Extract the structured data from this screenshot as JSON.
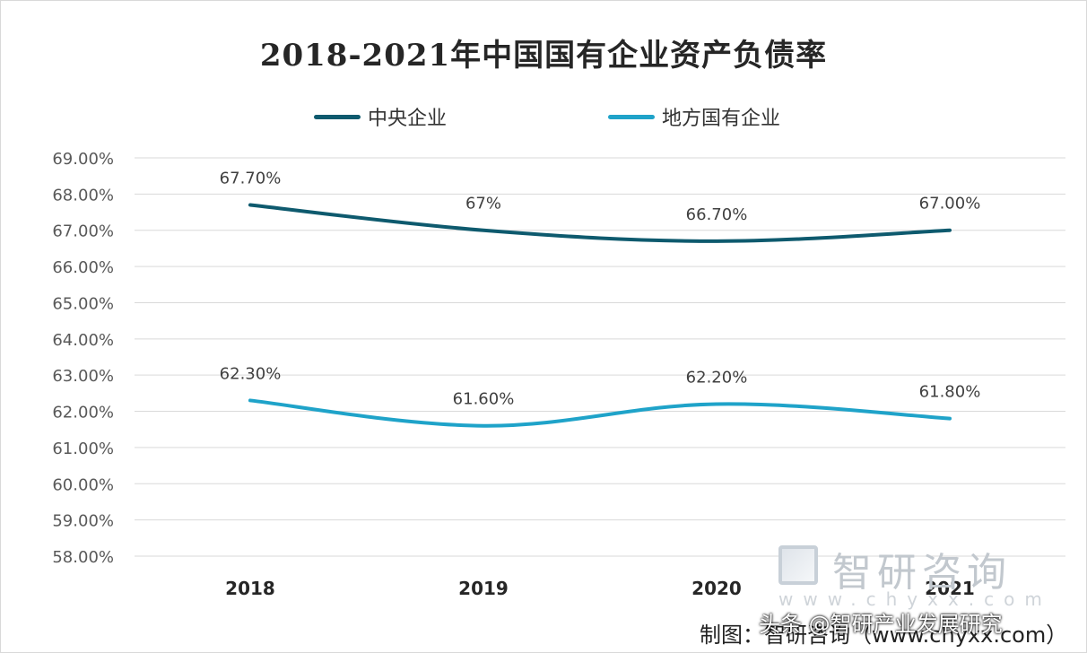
{
  "chart_data": {
    "type": "line",
    "title": "2018-2021年中国国有企业资产负债率",
    "categories": [
      "2018",
      "2019",
      "2020",
      "2021"
    ],
    "ylim": [
      58,
      69
    ],
    "ytick_labels": [
      "69.00%",
      "68.00%",
      "67.00%",
      "66.00%",
      "65.00%",
      "64.00%",
      "63.00%",
      "62.00%",
      "61.00%",
      "60.00%",
      "59.00%",
      "58.00%"
    ],
    "grid": true,
    "legend_position": "top",
    "series": [
      {
        "name": "中央企业",
        "color": "#0e5a6e",
        "values": [
          67.7,
          67.0,
          66.7,
          67.0
        ],
        "labels": [
          "67.70%",
          "67%",
          "66.70%",
          "67.00%"
        ]
      },
      {
        "name": "地方国有企业",
        "color": "#1fa3c9",
        "values": [
          62.3,
          61.6,
          62.2,
          61.8
        ],
        "labels": [
          "62.30%",
          "61.60%",
          "62.20%",
          "61.80%"
        ]
      }
    ]
  },
  "watermark": {
    "brand": "智研咨询",
    "url": "www.chyxx.com"
  },
  "credit": {
    "text": "制图：智研咨询（www.chyxx.com）",
    "overlay": "头条 @智研产业发展研究"
  }
}
